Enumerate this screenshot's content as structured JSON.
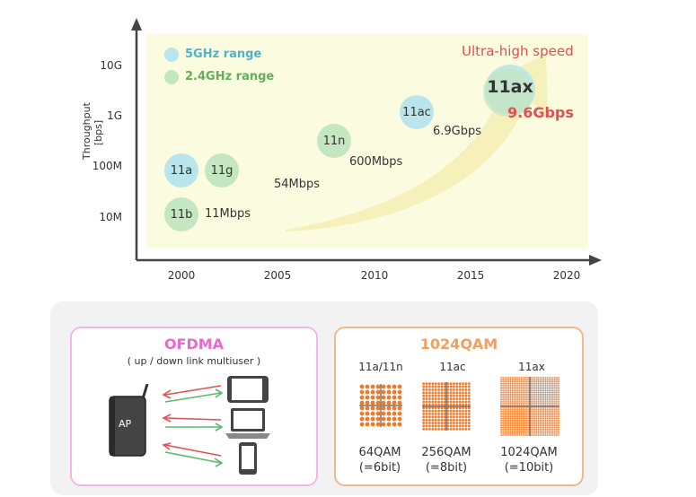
{
  "chart": {
    "ylabel_line1": "Throughput",
    "ylabel_line2": "[bps]",
    "y_ticks": [
      "10G",
      "1G",
      "100M",
      "10M"
    ],
    "x_ticks": [
      "2000",
      "2005",
      "2010",
      "2015",
      "2020"
    ],
    "legend": [
      {
        "label": "5GHz range",
        "color": "#4fb3c9"
      },
      {
        "label": "2.4GHz range",
        "color": "#62b05a"
      }
    ],
    "ultra_label": "Ultra-high speed",
    "bubbles": {
      "b11a": "11a",
      "b11g": "11g",
      "b11b": "11b",
      "b11n": "11n",
      "b11ac": "11ac",
      "b11ax": "11ax"
    },
    "speeds": {
      "s11b": "11Mbps",
      "s54": "54Mbps",
      "s600": "600Mbps",
      "s69": "6.9Gbps",
      "s96": "9.6Gbps"
    },
    "colors": {
      "area": "#fbfbe0",
      "arrow": "#f5f0b8",
      "accent_red": "#e05050"
    }
  },
  "chart_data": {
    "type": "scatter",
    "ylabel": "Throughput [bps]",
    "x_ticks": [
      2000,
      2005,
      2010,
      2015,
      2020
    ],
    "y_ticks": [
      "10M",
      "100M",
      "1G",
      "10G"
    ],
    "points": [
      {
        "name": "11b",
        "year": 2000,
        "speed": "11Mbps",
        "band": "2.4GHz"
      },
      {
        "name": "11a",
        "year": 2000,
        "band": "5GHz"
      },
      {
        "name": "11g",
        "year": 2002,
        "speed": "54Mbps",
        "band": "2.4GHz"
      },
      {
        "name": "11n",
        "year": 2008,
        "speed": "600Mbps",
        "band": "2.4GHz"
      },
      {
        "name": "11ac",
        "year": 2012,
        "speed": "6.9Gbps",
        "band": "5GHz"
      },
      {
        "name": "11ax",
        "year": 2017,
        "speed": "9.6Gbps",
        "band": "both"
      }
    ]
  },
  "ofdma": {
    "title": "OFDMA",
    "subtitle": "( up / down link multiuser )",
    "ap_label": "AP",
    "title_color": "#e86ad0",
    "border_color": "#f0b8e6"
  },
  "qam": {
    "title": "1024QAM",
    "title_color": "#f0a060",
    "border_color": "#f0b890",
    "columns": [
      {
        "label": "11a/11n",
        "caption1": "64QAM",
        "caption2": "(=6bit)"
      },
      {
        "label": "11ac",
        "caption1": "256QAM",
        "caption2": "(=8bit)"
      },
      {
        "label": "11ax",
        "caption1": "1024QAM",
        "caption2": "(=10bit)"
      }
    ]
  }
}
